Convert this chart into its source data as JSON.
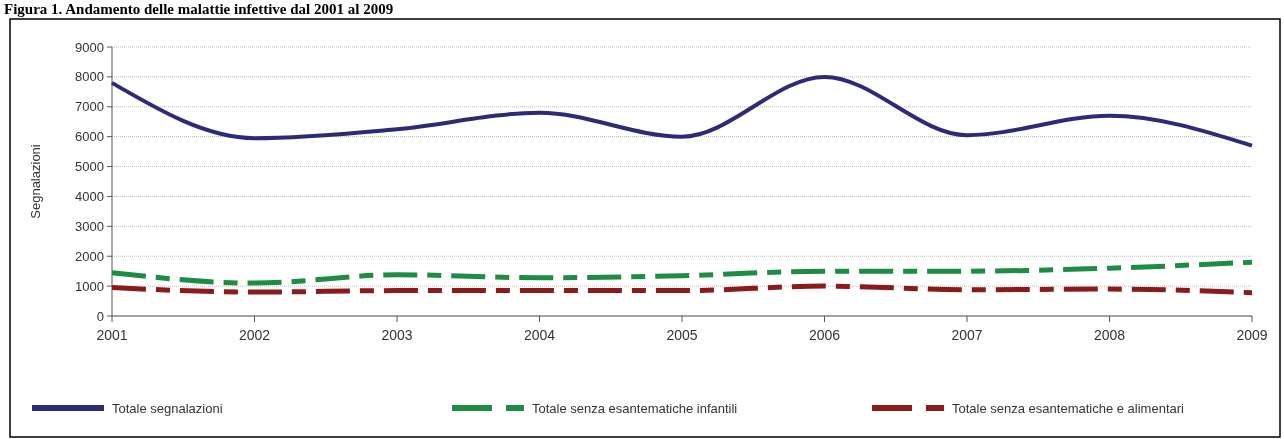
{
  "chart_data": {
    "type": "line",
    "title": "Figura 1. Andamento delle malattie infettive dal 2001 al 2009",
    "ylabel": "Segnalazioni",
    "x": [
      2001,
      2002,
      2003,
      2004,
      2005,
      2006,
      2007,
      2008,
      2009
    ],
    "series": [
      {
        "name": "Totale segnalazioni",
        "color": "#2e2a78",
        "line_style": "solid",
        "values": [
          7800,
          5950,
          6250,
          6800,
          6000,
          8000,
          6050,
          6700,
          5700
        ]
      },
      {
        "name": "Totale senza esantematiche infantili",
        "color": "#1e8c44",
        "line_style": "dashed",
        "values": [
          1450,
          1100,
          1380,
          1280,
          1350,
          1500,
          1500,
          1600,
          1800
        ]
      },
      {
        "name": "Totale senza esantematiche e alimentari",
        "color": "#8b1a1a",
        "line_style": "dashed",
        "values": [
          950,
          800,
          850,
          850,
          850,
          1000,
          880,
          900,
          780
        ]
      }
    ],
    "xlim": [
      2001,
      2009
    ],
    "xticks": [
      2001,
      2002,
      2003,
      2004,
      2005,
      2006,
      2007,
      2008,
      2009
    ],
    "ylim": [
      0,
      9000
    ],
    "yticks": [
      0,
      1000,
      2000,
      3000,
      4000,
      5000,
      6000,
      7000,
      8000,
      9000
    ],
    "grid": "y",
    "legend": "bottom",
    "marker": "none"
  }
}
